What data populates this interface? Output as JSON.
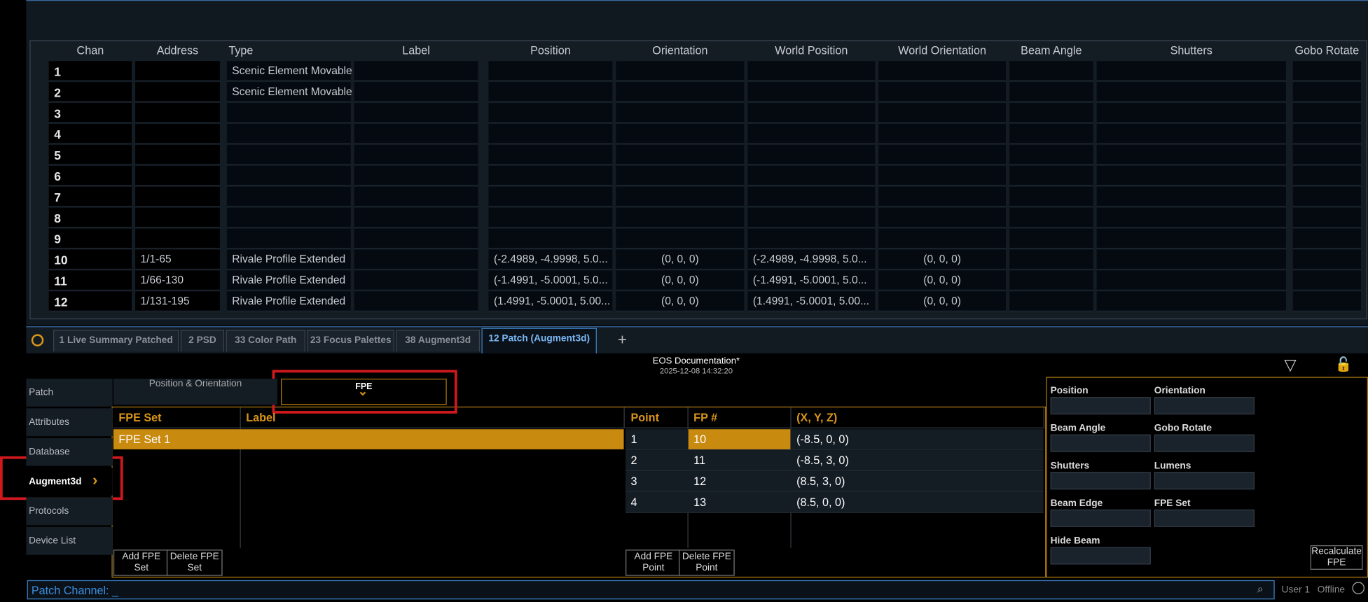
{
  "table": {
    "columns": [
      "Chan",
      "Address",
      "Type",
      "Label",
      "Position",
      "Orientation",
      "World Position",
      "World Orientation",
      "Beam Angle",
      "Shutters",
      "Gobo Rotate"
    ],
    "rows": [
      {
        "chan": 1,
        "type": "Scenic Element Movable"
      },
      {
        "chan": 2,
        "type": "Scenic Element Movable"
      },
      {
        "chan": 3
      },
      {
        "chan": 4
      },
      {
        "chan": 5
      },
      {
        "chan": 6
      },
      {
        "chan": 7
      },
      {
        "chan": 8
      },
      {
        "chan": 9
      },
      {
        "chan": 10,
        "address": "1/1-65",
        "type": "Rivale Profile Extended",
        "position": "(-2.4989, -4.9998, 5.0...",
        "orientation": "(0, 0, 0)",
        "world_position": "(-2.4989, -4.9998, 5.0...",
        "world_orientation": "(0, 0, 0)"
      },
      {
        "chan": 11,
        "address": "1/66-130",
        "type": "Rivale Profile Extended",
        "position": "(-1.4991, -5.0001, 5.0...",
        "orientation": "(0, 0, 0)",
        "world_position": "(-1.4991, -5.0001, 5.0...",
        "world_orientation": "(0, 0, 0)"
      },
      {
        "chan": 12,
        "address": "1/131-195",
        "type": "Rivale Profile Extended",
        "position": "(1.4991, -5.0001, 5.00...",
        "orientation": "(0, 0, 0)",
        "world_position": "(1.4991, -5.0001, 5.00...",
        "world_orientation": "(0, 0, 0)"
      }
    ]
  },
  "tabs": [
    "1 Live Summary Patched",
    "2 PSD",
    "33 Color Path",
    "23 Focus Palettes",
    "38 Augment3d",
    "12 Patch (Augment3d)"
  ],
  "header": {
    "title": "EOS Documentation*",
    "date": "2025-12-08 14:32:20"
  },
  "sidebar": [
    "Patch",
    "Attributes",
    "Database",
    "Augment3d",
    "Protocols",
    "Device List"
  ],
  "subtabs": [
    "Position & Orientation",
    "FPE"
  ],
  "fpe_sets": {
    "columns": [
      "FPE Set",
      "Label"
    ],
    "rows": [
      "FPE Set 1"
    ]
  },
  "points": {
    "columns": [
      "Point",
      "FP #",
      "(X, Y, Z)"
    ],
    "rows": [
      [
        1,
        10,
        "(-8.5, 0, 0)"
      ],
      [
        2,
        11,
        "(-8.5, 3, 0)"
      ],
      [
        3,
        12,
        "(8.5, 3, 0)"
      ],
      [
        4,
        13,
        "(8.5, 0, 0)"
      ]
    ]
  },
  "buttons": [
    "Add FPE Set",
    "Delete FPE Set",
    "Add FPE Point",
    "Delete FPE Point"
  ],
  "properties": [
    "Position",
    "Orientation",
    "Beam Angle",
    "Gobo Rotate",
    "Shutters",
    "Lumens",
    "Beam Edge",
    "FPE Set",
    "Hide Beam"
  ],
  "recalculate": "Recalculate FPE",
  "command_line": "Patch Channel:  _",
  "status": [
    "User 1",
    "Offline"
  ]
}
